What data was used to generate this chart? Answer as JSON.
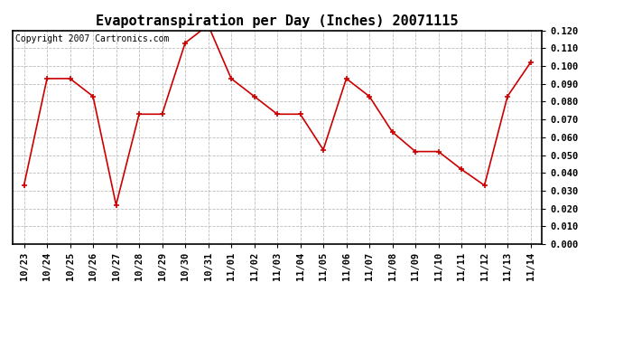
{
  "title": "Evapotranspiration per Day (Inches) 20071115",
  "copyright_text": "Copyright 2007 Cartronics.com",
  "x_labels": [
    "10/23",
    "10/24",
    "10/25",
    "10/26",
    "10/27",
    "10/28",
    "10/29",
    "10/30",
    "10/31",
    "11/01",
    "11/02",
    "11/03",
    "11/04",
    "11/05",
    "11/06",
    "11/07",
    "11/08",
    "11/09",
    "11/10",
    "11/11",
    "11/12",
    "11/13",
    "11/14"
  ],
  "y_values": [
    0.033,
    0.093,
    0.093,
    0.083,
    0.022,
    0.073,
    0.073,
    0.113,
    0.123,
    0.093,
    0.083,
    0.073,
    0.073,
    0.053,
    0.093,
    0.083,
    0.063,
    0.052,
    0.052,
    0.042,
    0.033,
    0.083,
    0.102
  ],
  "line_color": "#cc0000",
  "marker": "+",
  "marker_size": 5,
  "ylim_min": 0.0,
  "ylim_max": 0.12,
  "ytick_step": 0.01,
  "background_color": "#ffffff",
  "grid_color": "#bbbbbb",
  "title_fontsize": 11,
  "copyright_fontsize": 7,
  "tick_fontsize": 7.5
}
